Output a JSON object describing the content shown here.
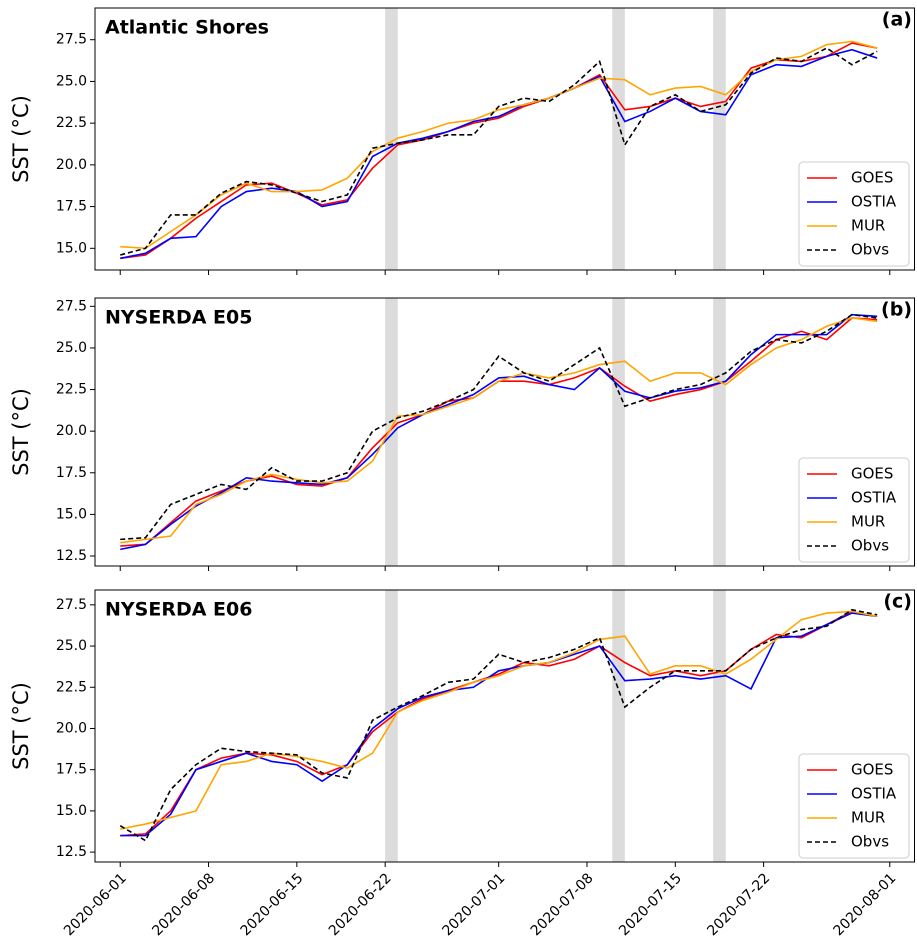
{
  "chart_data": [
    {
      "type": "line",
      "title": "Atlantic Shores",
      "panel_label": "(a)",
      "ylabel": "SST (°C)",
      "x": [
        "2020-06-01",
        "2020-06-03",
        "2020-06-05",
        "2020-06-07",
        "2020-06-09",
        "2020-06-11",
        "2020-06-13",
        "2020-06-15",
        "2020-06-17",
        "2020-06-19",
        "2020-06-21",
        "2020-06-23",
        "2020-06-25",
        "2020-06-27",
        "2020-06-29",
        "2020-07-01",
        "2020-07-03",
        "2020-07-05",
        "2020-07-07",
        "2020-07-09",
        "2020-07-11",
        "2020-07-13",
        "2020-07-15",
        "2020-07-17",
        "2020-07-19",
        "2020-07-21",
        "2020-07-23",
        "2020-07-25",
        "2020-07-27",
        "2020-07-29",
        "2020-07-31"
      ],
      "xlim": [
        "2020-05-30",
        "2020-08-03"
      ],
      "xticks": [
        "2020-06-01",
        "2020-06-08",
        "2020-06-15",
        "2020-06-22",
        "2020-07-01",
        "2020-07-08",
        "2020-07-15",
        "2020-07-22",
        "2020-08-01"
      ],
      "xticklabels": false,
      "ylim": [
        13.7,
        29.4
      ],
      "yticks": [
        {
          "value": 15,
          "label": "15.0"
        },
        17.5,
        {
          "value": 20,
          "label": "20.0"
        },
        22.5,
        {
          "value": 25,
          "label": "25.0"
        },
        27.5
      ],
      "shaded_days": [
        "2020-06-22",
        "2020-07-10",
        "2020-07-18"
      ],
      "legend": "lower right",
      "series": [
        {
          "name": "GOES",
          "color": "#ff0000",
          "linestyle": "solid",
          "values": [
            14.4,
            14.6,
            15.6,
            16.8,
            17.8,
            18.8,
            18.9,
            18.3,
            17.6,
            17.9,
            19.8,
            21.2,
            21.5,
            22.0,
            22.5,
            22.8,
            23.5,
            24.0,
            24.6,
            25.4,
            23.3,
            23.5,
            24.0,
            23.5,
            23.8,
            25.8,
            26.3,
            26.2,
            26.5,
            27.3,
            27.0
          ]
        },
        {
          "name": "OSTIA",
          "color": "#0000ff",
          "linestyle": "solid",
          "values": [
            14.4,
            14.7,
            15.6,
            15.7,
            17.5,
            18.4,
            18.6,
            18.4,
            17.5,
            17.8,
            20.5,
            21.3,
            21.6,
            22.0,
            22.6,
            22.9,
            23.6,
            24.0,
            24.6,
            25.3,
            22.6,
            23.2,
            24.0,
            23.2,
            23.0,
            25.4,
            26.0,
            25.9,
            26.5,
            26.9,
            26.4
          ]
        },
        {
          "name": "MUR",
          "color": "#ffa500",
          "linestyle": "solid",
          "values": [
            15.1,
            15.0,
            16.0,
            17.0,
            18.2,
            18.9,
            18.4,
            18.4,
            18.5,
            19.2,
            20.8,
            21.6,
            22.0,
            22.5,
            22.7,
            23.3,
            23.6,
            24.0,
            24.6,
            25.2,
            25.1,
            24.2,
            24.6,
            24.7,
            24.2,
            25.6,
            26.3,
            26.5,
            27.2,
            27.4,
            27.0
          ]
        },
        {
          "name": "Obvs",
          "color": "#000000",
          "linestyle": "dashed",
          "values": [
            14.6,
            15.0,
            17.0,
            17.0,
            18.3,
            19.0,
            18.8,
            18.3,
            17.8,
            18.2,
            21.0,
            21.3,
            21.5,
            21.8,
            21.8,
            23.5,
            24.0,
            23.8,
            24.8,
            26.2,
            21.2,
            23.5,
            24.2,
            23.2,
            23.6,
            25.5,
            26.4,
            26.2,
            27.0,
            26.0,
            26.8
          ]
        }
      ]
    },
    {
      "type": "line",
      "title": "NYSERDA E05",
      "panel_label": "(b)",
      "ylabel": "SST (°C)",
      "x": [
        "2020-06-01",
        "2020-06-03",
        "2020-06-05",
        "2020-06-07",
        "2020-06-09",
        "2020-06-11",
        "2020-06-13",
        "2020-06-15",
        "2020-06-17",
        "2020-06-19",
        "2020-06-21",
        "2020-06-23",
        "2020-06-25",
        "2020-06-27",
        "2020-06-29",
        "2020-07-01",
        "2020-07-03",
        "2020-07-05",
        "2020-07-07",
        "2020-07-09",
        "2020-07-11",
        "2020-07-13",
        "2020-07-15",
        "2020-07-17",
        "2020-07-19",
        "2020-07-21",
        "2020-07-23",
        "2020-07-25",
        "2020-07-27",
        "2020-07-29",
        "2020-07-31"
      ],
      "xlim": [
        "2020-05-30",
        "2020-08-03"
      ],
      "xticks": [
        "2020-06-01",
        "2020-06-08",
        "2020-06-15",
        "2020-06-22",
        "2020-07-01",
        "2020-07-08",
        "2020-07-15",
        "2020-07-22",
        "2020-08-01"
      ],
      "xticklabels": false,
      "ylim": [
        11.9,
        28.0
      ],
      "yticks": [
        12.5,
        {
          "value": 15,
          "label": "15.0"
        },
        17.5,
        {
          "value": 20,
          "label": "20.0"
        },
        22.5,
        {
          "value": 25,
          "label": "25.0"
        },
        27.5
      ],
      "shaded_days": [
        "2020-06-22",
        "2020-07-10",
        "2020-07-18"
      ],
      "legend": "lower right",
      "series": [
        {
          "name": "GOES",
          "color": "#ff0000",
          "linestyle": "solid",
          "values": [
            13.1,
            13.2,
            14.5,
            15.8,
            16.4,
            17.0,
            17.3,
            16.8,
            16.7,
            17.2,
            19.0,
            20.5,
            21.0,
            21.8,
            22.0,
            23.0,
            23.0,
            22.8,
            23.2,
            23.8,
            22.7,
            21.8,
            22.2,
            22.5,
            23.0,
            24.2,
            25.5,
            26.0,
            25.5,
            26.8,
            26.7
          ]
        },
        {
          "name": "OSTIA",
          "color": "#0000ff",
          "linestyle": "solid",
          "values": [
            12.9,
            13.2,
            14.4,
            15.5,
            16.3,
            17.2,
            17.0,
            16.9,
            16.8,
            17.2,
            18.6,
            20.2,
            21.0,
            21.6,
            22.2,
            23.2,
            23.3,
            22.8,
            22.5,
            23.8,
            22.4,
            22.0,
            22.4,
            22.6,
            23.0,
            24.6,
            25.8,
            25.8,
            25.8,
            27.0,
            26.9
          ]
        },
        {
          "name": "MUR",
          "color": "#ffa500",
          "linestyle": "solid",
          "values": [
            13.3,
            13.5,
            13.7,
            15.6,
            16.2,
            17.0,
            17.4,
            17.1,
            16.9,
            17.0,
            18.2,
            20.9,
            21.0,
            21.5,
            22.0,
            23.0,
            23.5,
            23.2,
            23.5,
            24.0,
            24.2,
            23.0,
            23.5,
            23.5,
            22.8,
            24.0,
            25.0,
            25.5,
            26.3,
            26.8,
            26.6
          ]
        },
        {
          "name": "Obvs",
          "color": "#000000",
          "linestyle": "dashed",
          "values": [
            13.5,
            13.6,
            15.6,
            16.2,
            16.8,
            16.5,
            17.8,
            17.0,
            17.0,
            17.5,
            20.0,
            20.8,
            21.2,
            21.8,
            22.5,
            24.5,
            23.5,
            23.0,
            24.0,
            25.0,
            21.5,
            22.0,
            22.5,
            22.8,
            23.5,
            24.8,
            25.5,
            25.3,
            26.0,
            27.0,
            26.8
          ]
        }
      ]
    },
    {
      "type": "line",
      "title": "NYSERDA E06",
      "panel_label": "(c)",
      "ylabel": "SST (°C)",
      "x": [
        "2020-06-01",
        "2020-06-03",
        "2020-06-05",
        "2020-06-07",
        "2020-06-09",
        "2020-06-11",
        "2020-06-13",
        "2020-06-15",
        "2020-06-17",
        "2020-06-19",
        "2020-06-21",
        "2020-06-23",
        "2020-06-25",
        "2020-06-27",
        "2020-06-29",
        "2020-07-01",
        "2020-07-03",
        "2020-07-05",
        "2020-07-07",
        "2020-07-09",
        "2020-07-11",
        "2020-07-13",
        "2020-07-15",
        "2020-07-17",
        "2020-07-19",
        "2020-07-21",
        "2020-07-23",
        "2020-07-25",
        "2020-07-27",
        "2020-07-29",
        "2020-07-31"
      ],
      "xlim": [
        "2020-05-30",
        "2020-08-03"
      ],
      "xticks": [
        "2020-06-01",
        "2020-06-08",
        "2020-06-15",
        "2020-06-22",
        "2020-07-01",
        "2020-07-08",
        "2020-07-15",
        "2020-07-22",
        "2020-08-01"
      ],
      "xticklabels": true,
      "ylim": [
        11.9,
        28.4
      ],
      "yticks": [
        12.5,
        {
          "value": 15,
          "label": "15.0"
        },
        17.5,
        {
          "value": 20,
          "label": "20.0"
        },
        22.5,
        {
          "value": 25,
          "label": "25.0"
        },
        27.5
      ],
      "shaded_days": [
        "2020-06-22",
        "2020-07-10",
        "2020-07-18"
      ],
      "legend": "lower right",
      "series": [
        {
          "name": "GOES",
          "color": "#ff0000",
          "linestyle": "solid",
          "values": [
            13.5,
            13.6,
            15.0,
            17.5,
            18.2,
            18.5,
            18.4,
            18.0,
            17.2,
            17.8,
            19.8,
            21.0,
            21.8,
            22.3,
            22.8,
            23.3,
            24.0,
            23.8,
            24.2,
            25.0,
            24.0,
            23.2,
            23.5,
            23.2,
            23.5,
            24.8,
            25.7,
            25.5,
            26.3,
            27.1,
            26.8
          ]
        },
        {
          "name": "OSTIA",
          "color": "#0000ff",
          "linestyle": "solid",
          "values": [
            13.5,
            13.5,
            14.8,
            17.5,
            18.0,
            18.5,
            18.0,
            17.8,
            16.8,
            17.8,
            20.0,
            21.2,
            21.9,
            22.3,
            22.5,
            23.5,
            23.8,
            24.0,
            24.5,
            25.0,
            22.9,
            23.0,
            23.2,
            23.0,
            23.2,
            22.4,
            25.5,
            25.6,
            26.3,
            27.0,
            26.8
          ]
        },
        {
          "name": "MUR",
          "color": "#ffa500",
          "linestyle": "solid",
          "values": [
            13.9,
            14.2,
            14.6,
            15.0,
            17.8,
            18.0,
            18.5,
            18.3,
            18.0,
            17.6,
            18.5,
            21.0,
            21.7,
            22.2,
            22.8,
            23.2,
            23.8,
            24.0,
            24.6,
            25.4,
            25.6,
            23.3,
            23.8,
            23.8,
            23.3,
            24.2,
            25.4,
            26.6,
            27.0,
            27.1,
            26.8
          ]
        },
        {
          "name": "Obvs",
          "color": "#000000",
          "linestyle": "dashed",
          "values": [
            14.1,
            13.2,
            16.3,
            17.8,
            18.8,
            18.6,
            18.5,
            18.4,
            17.3,
            17.0,
            20.5,
            21.3,
            22.0,
            22.8,
            23.0,
            24.5,
            24.0,
            24.3,
            24.8,
            25.5,
            21.3,
            22.5,
            23.5,
            23.5,
            23.5,
            24.8,
            25.5,
            26.0,
            26.2,
            27.2,
            26.9
          ]
        }
      ]
    }
  ]
}
